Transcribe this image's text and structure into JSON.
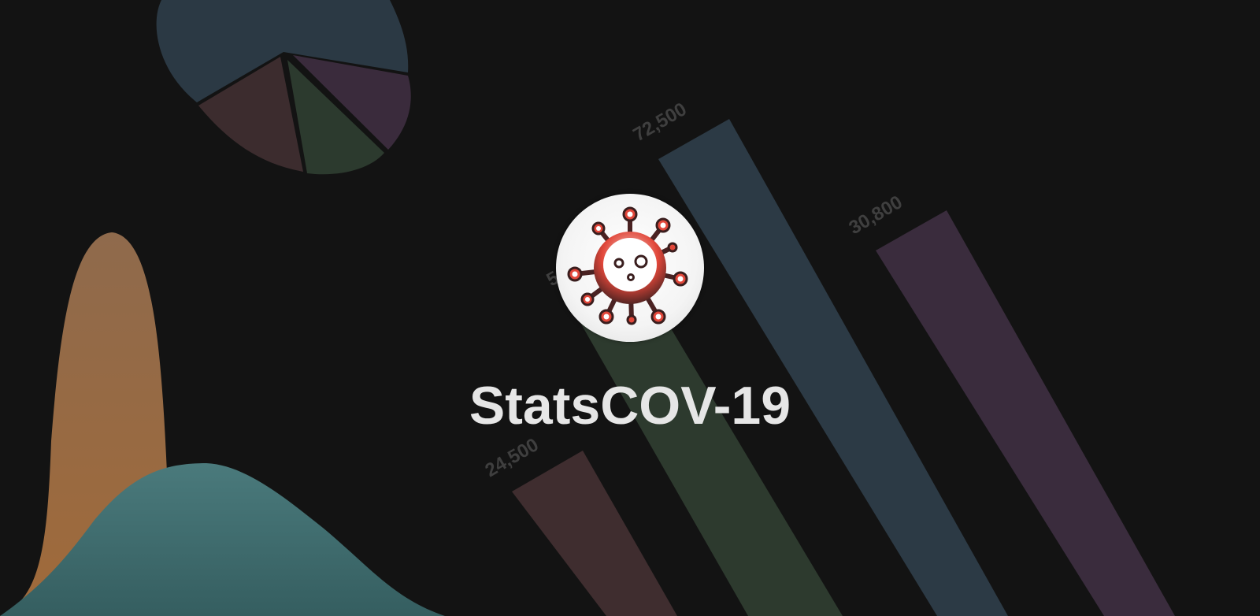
{
  "app": {
    "title": "StatsCOV-19"
  },
  "logo": {
    "icon": "virus-icon",
    "colors": {
      "primary": "#e2473a",
      "dark": "#3a1e1e",
      "bg": "#ffffff"
    }
  },
  "background": {
    "bar_labels": [
      "24,500",
      "5",
      "72,500",
      "30,800"
    ],
    "colors": {
      "page": "#131313",
      "pie_blue": "#2b3944",
      "pie_brown": "#3c2c2e",
      "pie_green": "#2c3a2e",
      "pie_purple": "#3a2b3c",
      "curve_orange": "#8b6442",
      "curve_teal": "#3e6a6a",
      "bar_brown": "#3f2d2f",
      "bar_green": "#2d3a2e",
      "bar_blue": "#2c3a45",
      "bar_purple": "#3a2c3d",
      "label": "#3f3f3f"
    }
  }
}
